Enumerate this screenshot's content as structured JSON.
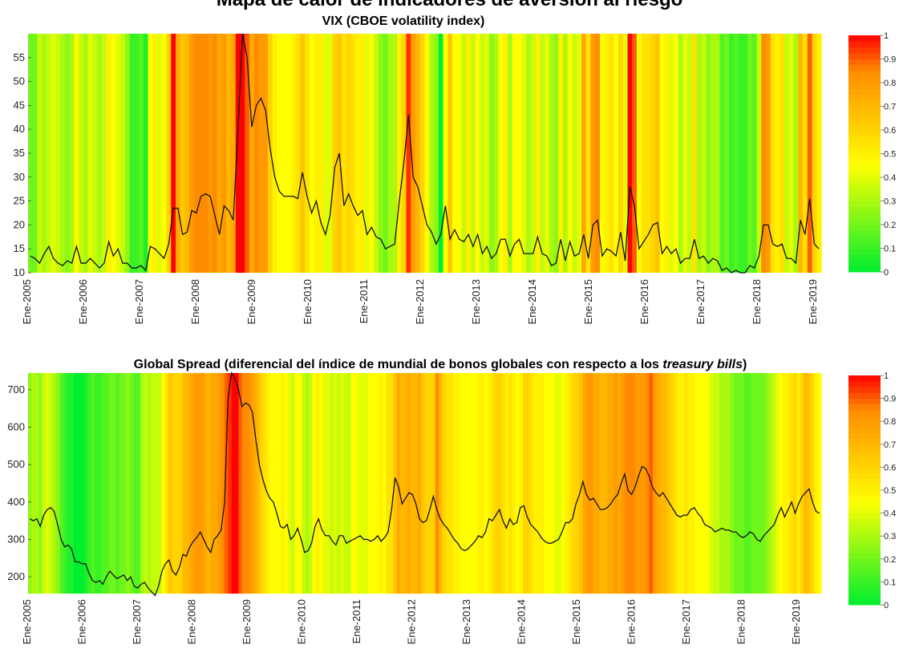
{
  "page_title": "Mapa de calor de indicadores de aversión al riesgo",
  "charts": [
    {
      "title": "VIX (CBOE volatility index)"
    },
    {
      "title_prefix": "Global Spread (diferencial del índice de mundial de bonos globales con respecto a los ",
      "title_italic": "treasury bills",
      "title_suffix": ")"
    }
  ],
  "year_labels": [
    "Ene-2005",
    "Ene-2006",
    "Ene-2007",
    "Ene-2008",
    "Ene-2009",
    "Ene-2010",
    "Ene-2011",
    "Ene-2012",
    "Ene-2013",
    "Ene-2014",
    "Ene-2015",
    "Ene-2016",
    "Ene-2017",
    "Ene-2018",
    "Ene-2019"
  ],
  "colorbar_ticks": [
    "0",
    "0.1",
    "0.2",
    "0.3",
    "0.4",
    "0.5",
    "0.6",
    "0.7",
    "0.8",
    "0.9",
    "1"
  ],
  "colors": {
    "low": "#00ee30",
    "mid": "#ffff00",
    "orange": "#ff8c00",
    "high": "#ff0000",
    "line": "#111111"
  },
  "chart_data": [
    {
      "type": "line",
      "title": "VIX (CBOE volatility index)",
      "x_start": "Ene-2005",
      "frequency": "monthly",
      "ylim": [
        10,
        60
      ],
      "yticks": [
        10,
        15,
        20,
        25,
        30,
        35,
        40,
        45,
        50,
        55
      ],
      "background": "heatmap (monthly intensity 0-1)",
      "y": [
        13.5,
        13,
        12,
        14,
        15.5,
        13,
        12,
        11.5,
        12.5,
        12,
        15.5,
        12,
        12,
        13,
        12,
        11,
        12,
        16.5,
        13.5,
        15,
        12,
        12,
        11,
        11,
        11.5,
        10.5,
        15.5,
        15,
        14,
        13,
        16,
        23.5,
        23.5,
        18,
        18.5,
        23,
        22.5,
        26,
        26.5,
        26,
        22,
        18,
        24,
        23,
        21,
        39.5,
        60,
        55,
        40.5,
        45,
        46.5,
        44,
        36,
        30,
        27,
        26,
        26,
        26,
        25.5,
        31,
        26,
        22.5,
        25,
        20.5,
        18,
        22,
        32,
        35,
        24,
        26.5,
        24,
        22,
        23,
        18,
        19.5,
        17.5,
        17,
        15,
        15.5,
        16,
        25,
        33,
        43,
        30,
        28,
        24,
        20,
        18.5,
        16,
        18,
        24,
        17,
        19,
        17,
        16.5,
        18,
        15.5,
        18,
        14,
        15.5,
        13,
        14,
        17,
        17,
        13.5,
        16,
        17,
        14,
        14,
        14,
        17.5,
        14,
        13.5,
        11.5,
        12,
        17,
        12.5,
        16.5,
        13.5,
        14,
        18,
        13,
        20,
        21,
        13.5,
        15,
        14.5,
        13.5,
        18.5,
        12.5,
        28,
        24,
        15,
        16.5,
        18,
        20,
        20.5,
        14,
        15.5,
        14,
        15,
        12,
        13,
        13,
        17,
        13,
        13.5,
        12,
        13,
        12.5,
        10.5,
        11,
        10,
        10.5,
        10,
        10,
        11.5,
        11,
        13.5,
        20,
        20,
        16,
        15.5,
        16,
        13,
        13,
        12,
        21,
        18,
        25.5,
        16,
        15
      ],
      "heat": [
        0.2,
        0.2,
        0.35,
        0.3,
        0.35,
        0.4,
        0.35,
        0.3,
        0.25,
        0.3,
        0.45,
        0.35,
        0.3,
        0.4,
        0.35,
        0.3,
        0.35,
        0.5,
        0.45,
        0.4,
        0.35,
        0.25,
        0.1,
        0.1,
        0.15,
        0.05,
        0.45,
        0.5,
        0.4,
        0.45,
        0.6,
        1.0,
        0.75,
        0.65,
        0.7,
        0.8,
        0.85,
        0.85,
        0.85,
        0.8,
        0.85,
        0.75,
        0.8,
        0.7,
        0.75,
        1.0,
        1.0,
        0.9,
        0.75,
        0.85,
        0.8,
        0.8,
        0.6,
        0.5,
        0.45,
        0.45,
        0.45,
        0.5,
        0.55,
        0.65,
        0.55,
        0.45,
        0.5,
        0.5,
        0.4,
        0.4,
        0.6,
        0.65,
        0.55,
        0.6,
        0.55,
        0.5,
        0.5,
        0.4,
        0.45,
        0.35,
        0.25,
        0.2,
        0.3,
        0.3,
        0.5,
        0.6,
        0.95,
        0.8,
        0.7,
        0.6,
        0.45,
        0.3,
        0.25,
        0.0,
        0.45,
        0.65,
        0.45,
        0.45,
        0.35,
        0.5,
        0.35,
        0.45,
        0.35,
        0.4,
        0.25,
        0.3,
        0.45,
        0.5,
        0.3,
        0.45,
        0.45,
        0.4,
        0.3,
        0.35,
        0.5,
        0.35,
        0.4,
        0.3,
        0.25,
        0.5,
        0.3,
        0.45,
        0.35,
        0.4,
        0.75,
        0.55,
        0.8,
        0.85,
        0.45,
        0.5,
        0.55,
        0.45,
        0.6,
        0.4,
        1.0,
        0.9,
        0.45,
        0.55,
        0.55,
        0.6,
        0.65,
        0.45,
        0.5,
        0.4,
        0.45,
        0.3,
        0.4,
        0.35,
        0.55,
        0.3,
        0.35,
        0.25,
        0.3,
        0.3,
        0.15,
        0.2,
        0.1,
        0.15,
        0.1,
        0.1,
        0.2,
        0.15,
        0.35,
        0.85,
        0.8,
        0.55,
        0.5,
        0.55,
        0.35,
        0.4,
        0.3,
        0.7,
        0.55,
        0.9,
        0.6,
        0.5
      ]
    },
    {
      "type": "line",
      "title": "Global Spread (diferencial del índice de mundial de bonos globales con respecto a los treasury bills)",
      "x_start": "Ene-2005",
      "frequency": "monthly",
      "ylim": [
        155,
        745
      ],
      "yticks": [
        200,
        300,
        400,
        500,
        600,
        700
      ],
      "background": "heatmap (monthly intensity 0-1)",
      "y": [
        355,
        350,
        355,
        335,
        365,
        380,
        385,
        375,
        340,
        300,
        280,
        285,
        275,
        240,
        240,
        235,
        235,
        210,
        190,
        185,
        190,
        180,
        200,
        215,
        205,
        195,
        200,
        205,
        190,
        200,
        175,
        170,
        180,
        185,
        170,
        160,
        150,
        175,
        215,
        235,
        245,
        215,
        205,
        225,
        260,
        255,
        280,
        295,
        305,
        320,
        300,
        280,
        265,
        300,
        310,
        325,
        400,
        680,
        745,
        730,
        700,
        655,
        665,
        660,
        640,
        565,
        500,
        460,
        430,
        410,
        400,
        370,
        335,
        330,
        340,
        300,
        310,
        330,
        300,
        265,
        270,
        290,
        335,
        355,
        325,
        310,
        310,
        295,
        285,
        310,
        310,
        290,
        295,
        300,
        305,
        310,
        300,
        300,
        295,
        300,
        310,
        295,
        305,
        320,
        380,
        465,
        440,
        395,
        410,
        425,
        420,
        395,
        355,
        345,
        350,
        380,
        415,
        380,
        355,
        340,
        330,
        315,
        300,
        290,
        275,
        270,
        275,
        285,
        295,
        310,
        305,
        320,
        355,
        350,
        365,
        380,
        350,
        330,
        355,
        340,
        345,
        385,
        390,
        360,
        340,
        330,
        320,
        305,
        295,
        290,
        290,
        295,
        300,
        320,
        345,
        345,
        355,
        395,
        420,
        455,
        420,
        405,
        410,
        395,
        380,
        380,
        385,
        395,
        410,
        420,
        450,
        475,
        430,
        420,
        440,
        470,
        495,
        490,
        470,
        440,
        425,
        415,
        425,
        410,
        395,
        380,
        365,
        360,
        365,
        365,
        380,
        385,
        370,
        360,
        340,
        335,
        330,
        320,
        325,
        330,
        325,
        325,
        320,
        320,
        310,
        305,
        310,
        320,
        315,
        300,
        295,
        310,
        320,
        330,
        340,
        365,
        385,
        360,
        380,
        400,
        370,
        395,
        415,
        425,
        435,
        400,
        375,
        370
      ],
      "heat": [
        0.25,
        0.3,
        0.3,
        0.25,
        0.35,
        0.4,
        0.35,
        0.3,
        0.25,
        0.15,
        0.1,
        0.05,
        0.05,
        0.0,
        0.0,
        0.0,
        0.05,
        0.1,
        0.15,
        0.1,
        0.1,
        0.15,
        0.15,
        0.2,
        0.2,
        0.15,
        0.2,
        0.2,
        0.25,
        0.2,
        0.15,
        0.15,
        0.3,
        0.35,
        0.3,
        0.35,
        0.35,
        0.35,
        0.45,
        0.55,
        0.65,
        0.6,
        0.6,
        0.6,
        0.7,
        0.7,
        0.75,
        0.8,
        0.8,
        0.8,
        0.75,
        0.7,
        0.75,
        0.75,
        0.8,
        0.85,
        0.9,
        0.95,
        1.0,
        1.0,
        0.9,
        0.85,
        0.85,
        0.8,
        0.75,
        0.7,
        0.6,
        0.55,
        0.5,
        0.45,
        0.45,
        0.45,
        0.5,
        0.45,
        0.4,
        0.35,
        0.45,
        0.45,
        0.35,
        0.3,
        0.35,
        0.45,
        0.5,
        0.45,
        0.4,
        0.4,
        0.35,
        0.4,
        0.35,
        0.4,
        0.35,
        0.35,
        0.45,
        0.45,
        0.4,
        0.4,
        0.4,
        0.45,
        0.45,
        0.45,
        0.5,
        0.45,
        0.55,
        0.55,
        0.65,
        0.75,
        0.7,
        0.7,
        0.75,
        0.7,
        0.7,
        0.75,
        0.65,
        0.6,
        0.6,
        0.6,
        0.85,
        0.7,
        0.6,
        0.55,
        0.55,
        0.5,
        0.5,
        0.45,
        0.45,
        0.45,
        0.45,
        0.45,
        0.5,
        0.5,
        0.45,
        0.5,
        0.55,
        0.6,
        0.6,
        0.55,
        0.5,
        0.55,
        0.5,
        0.45,
        0.5,
        0.6,
        0.6,
        0.55,
        0.5,
        0.5,
        0.5,
        0.45,
        0.45,
        0.45,
        0.4,
        0.4,
        0.45,
        0.5,
        0.55,
        0.6,
        0.6,
        0.65,
        0.75,
        0.8,
        0.8,
        0.75,
        0.75,
        0.7,
        0.7,
        0.75,
        0.75,
        0.8,
        0.75,
        0.8,
        0.85,
        0.85,
        0.85,
        0.8,
        0.8,
        0.8,
        0.85,
        0.9,
        0.8,
        0.75,
        0.7,
        0.7,
        0.65,
        0.6,
        0.55,
        0.5,
        0.5,
        0.55,
        0.5,
        0.5,
        0.45,
        0.45,
        0.45,
        0.45,
        0.4,
        0.35,
        0.35,
        0.3,
        0.3,
        0.3,
        0.25,
        0.2,
        0.2,
        0.2,
        0.15,
        0.15,
        0.2,
        0.2,
        0.2,
        0.2,
        0.25,
        0.3,
        0.35,
        0.4,
        0.45,
        0.5,
        0.5,
        0.55,
        0.6,
        0.5,
        0.6,
        0.7,
        0.65,
        0.6,
        0.5,
        0.45
      ]
    }
  ]
}
